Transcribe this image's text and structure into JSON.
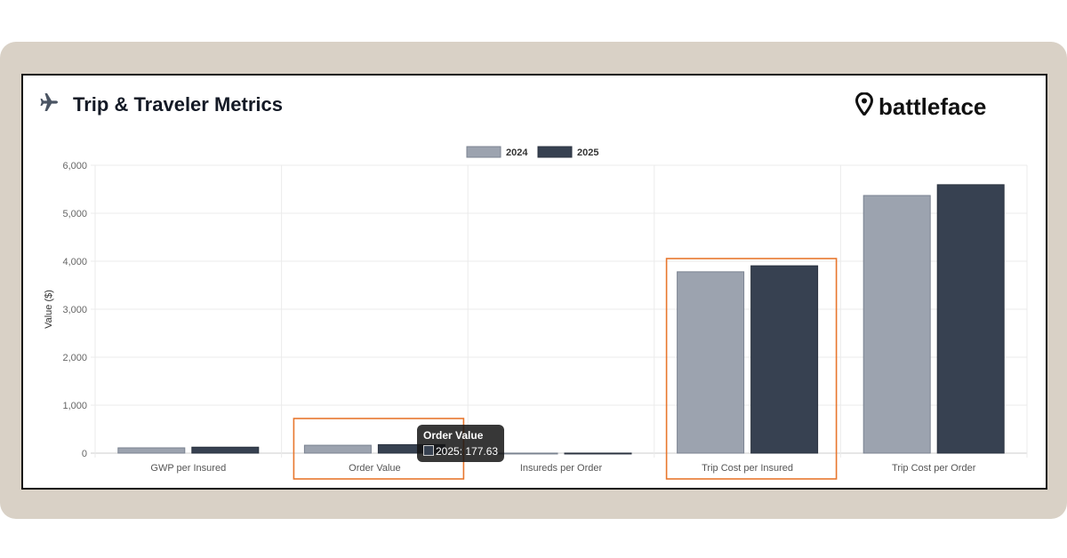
{
  "header": {
    "title": "Trip & Traveler Metrics",
    "icon": "airplane-icon",
    "brand": "battleface",
    "brand_icon": "map-pin-icon"
  },
  "colors": {
    "s2024": "#9ca3af",
    "s2025": "#374151",
    "highlight": "#e8772e",
    "frame": "#d9d1c6"
  },
  "tooltip": {
    "title": "Order Value",
    "line": "2025: 177.63"
  },
  "chart_data": {
    "type": "bar",
    "title": "",
    "xlabel": "",
    "ylabel": "Value ($)",
    "ylim": [
      0,
      6000
    ],
    "yticks": [
      "0",
      "1,000",
      "2,000",
      "3,000",
      "4,000",
      "5,000",
      "6,000"
    ],
    "grid": true,
    "legend": "top",
    "categories": [
      "GWP per Insured",
      "Order Value",
      "Insureds per Order",
      "Trip Cost per Insured",
      "Trip Cost per Order"
    ],
    "series": [
      {
        "name": "2024",
        "values": [
          111,
          165,
          1.5,
          3780,
          5370
        ]
      },
      {
        "name": "2025",
        "values": [
          125,
          177.63,
          1.6,
          3905,
          5595
        ]
      }
    ],
    "highlighted_categories": [
      "Order Value",
      "Trip Cost per Insured"
    ]
  }
}
